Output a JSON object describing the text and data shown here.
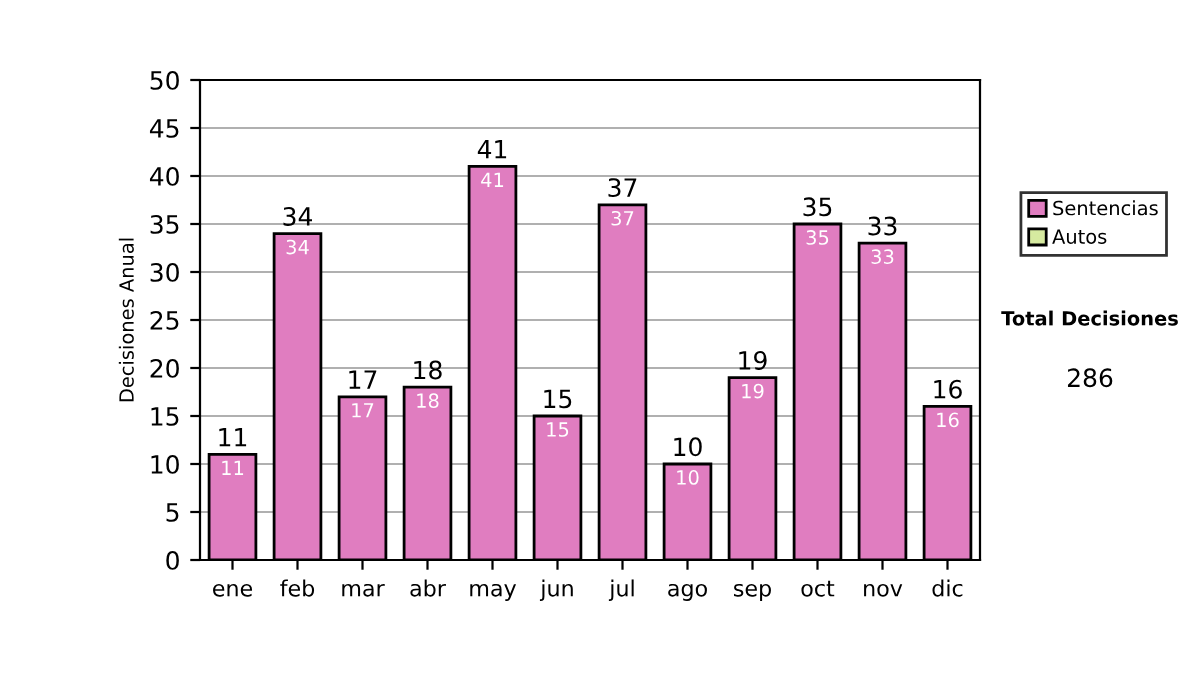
{
  "chart_data": {
    "type": "bar",
    "ylabel": "Decisiones Anual",
    "categories": [
      "ene",
      "feb",
      "mar",
      "abr",
      "may",
      "jun",
      "jul",
      "ago",
      "sep",
      "oct",
      "nov",
      "dic"
    ],
    "series": [
      {
        "name": "Sentencias",
        "color": "#e07dc0",
        "values": [
          11,
          34,
          17,
          18,
          41,
          15,
          37,
          10,
          19,
          35,
          33,
          16
        ],
        "value_labels": [
          "11",
          "34",
          "17",
          "18",
          "41",
          "15",
          "37",
          "10",
          "19",
          "35",
          "33",
          "16"
        ]
      },
      {
        "name": "Autos",
        "color": "#d6eaa0",
        "values": [
          null,
          null,
          null,
          null,
          null,
          null,
          null,
          null,
          null,
          null,
          null,
          null
        ]
      }
    ],
    "stacked": true,
    "totals": [
      "11",
      "34",
      "17",
      "18",
      "41",
      "15",
      "37",
      "10",
      "19",
      "35",
      "33",
      "16"
    ],
    "ylim": [
      0,
      50
    ],
    "yticks": [
      0,
      5,
      10,
      15,
      20,
      25,
      30,
      35,
      40,
      45,
      50
    ],
    "grid": "y",
    "legend": "right",
    "annotations": [
      "Total Decisiones",
      "286"
    ]
  }
}
